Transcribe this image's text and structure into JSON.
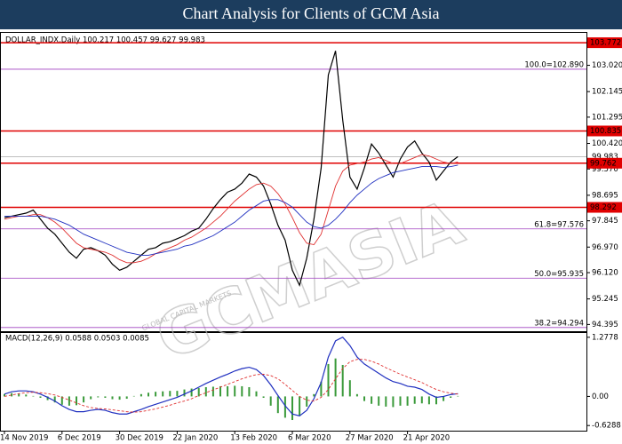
{
  "header": {
    "title": "Chart Analysis for Clients of GCM Asia"
  },
  "watermark": {
    "text": "GCMASIA",
    "subtext": "GLOBAL CAPITAL MARKETS"
  },
  "chart_data": [
    {
      "type": "line",
      "title": "DOLLAR_INDX.Daily  100.217 100.457 99.627 99.983",
      "categories": [
        "14 Nov 2019",
        null,
        null,
        null,
        null,
        null,
        null,
        null,
        "6 Dec 2019",
        null,
        null,
        null,
        null,
        null,
        null,
        null,
        "30 Dec 2019",
        null,
        null,
        null,
        null,
        null,
        null,
        null,
        "22 Jan 2020",
        null,
        null,
        null,
        null,
        null,
        null,
        null,
        "13 Feb 2020",
        null,
        null,
        null,
        null,
        null,
        null,
        null,
        "6 Mar 2020",
        null,
        null,
        null,
        null,
        null,
        null,
        null,
        "27 Mar 2020",
        null,
        null,
        null,
        null,
        null,
        null,
        null,
        "21 Apr 2020",
        null,
        null,
        null,
        null,
        null,
        null,
        null
      ],
      "series": [
        {
          "color": "#000000",
          "values": [
            97.95,
            98.0,
            98.05,
            98.1,
            98.2,
            97.9,
            97.6,
            97.4,
            97.1,
            96.8,
            96.6,
            96.9,
            96.95,
            96.85,
            96.7,
            96.4,
            96.2,
            96.3,
            96.5,
            96.7,
            96.9,
            96.95,
            97.1,
            97.15,
            97.25,
            97.35,
            97.5,
            97.6,
            97.9,
            98.25,
            98.55,
            98.8,
            98.9,
            99.1,
            99.4,
            99.3,
            99.0,
            98.4,
            97.7,
            97.2,
            96.2,
            95.7,
            96.6,
            97.9,
            99.6,
            102.7,
            103.5,
            101.2,
            99.3,
            98.9,
            99.6,
            100.4,
            100.1,
            99.7,
            99.3,
            99.9,
            100.3,
            100.5,
            100.1,
            99.8,
            99.2,
            99.5,
            99.8,
            99.98
          ]
        },
        {
          "color": "#e03030",
          "values": [
            97.9,
            97.95,
            98.0,
            98.0,
            98.05,
            98.05,
            97.95,
            97.8,
            97.6,
            97.35,
            97.1,
            96.95,
            96.9,
            96.85,
            96.8,
            96.7,
            96.55,
            96.45,
            96.45,
            96.5,
            96.6,
            96.75,
            96.85,
            96.95,
            97.05,
            97.2,
            97.3,
            97.45,
            97.6,
            97.8,
            98.0,
            98.25,
            98.5,
            98.7,
            98.9,
            99.05,
            99.1,
            99.0,
            98.75,
            98.4,
            97.95,
            97.45,
            97.1,
            97.05,
            97.4,
            98.2,
            99.0,
            99.5,
            99.7,
            99.75,
            99.8,
            99.9,
            99.95,
            99.85,
            99.75,
            99.75,
            99.85,
            99.95,
            100.05,
            100.0,
            99.9,
            99.8,
            99.75,
            99.8
          ]
        },
        {
          "color": "#2030c0",
          "values": [
            98.0,
            98.0,
            98.0,
            98.0,
            98.0,
            98.0,
            97.95,
            97.9,
            97.8,
            97.7,
            97.55,
            97.4,
            97.3,
            97.2,
            97.1,
            97.0,
            96.9,
            96.8,
            96.75,
            96.7,
            96.7,
            96.75,
            96.8,
            96.85,
            96.9,
            97.0,
            97.05,
            97.15,
            97.25,
            97.35,
            97.5,
            97.65,
            97.8,
            98.0,
            98.2,
            98.35,
            98.5,
            98.55,
            98.55,
            98.45,
            98.3,
            98.05,
            97.8,
            97.65,
            97.6,
            97.7,
            97.9,
            98.15,
            98.45,
            98.7,
            98.9,
            99.1,
            99.25,
            99.35,
            99.45,
            99.5,
            99.55,
            99.6,
            99.65,
            99.65,
            99.65,
            99.62,
            99.65,
            99.7
          ]
        }
      ],
      "ylim": [
        94.17,
        104.1
      ],
      "yticks": [
        {
          "value": 103.02,
          "label": "103.020"
        },
        102.145,
        101.295,
        {
          "value": 100.42,
          "label": "100.420"
        },
        {
          "value": 99.57,
          "label": "99.570"
        },
        98.695,
        97.845,
        {
          "value": 96.97,
          "label": "96.970"
        },
        {
          "value": 96.12,
          "label": "96.120"
        },
        95.245,
        94.395
      ],
      "levels": [
        103.772,
        100.835,
        99.762,
        98.292
      ],
      "level_color": "#e00000",
      "fib_levels": [
        {
          "value": 102.89,
          "label": "100.0=102.890"
        },
        {
          "value": 97.576,
          "label": "61.8=97.576"
        },
        {
          "value": 95.935,
          "label": "50.0=95.935"
        },
        {
          "value": 94.294,
          "label": "38.2=94.294"
        }
      ],
      "fib_color": "#a040c0",
      "last_price": 99.983
    },
    {
      "type": "macd",
      "title": "MACD(12,26,9) 0.0588 0.0503 0.0085",
      "histogram": {
        "color": "#3a9a3a",
        "values": [
          0.05,
          0.07,
          0.06,
          0.04,
          0.01,
          -0.03,
          -0.08,
          -0.13,
          -0.18,
          -0.2,
          -0.19,
          -0.13,
          -0.06,
          -0.02,
          -0.03,
          -0.06,
          -0.07,
          -0.05,
          0.01,
          0.05,
          0.08,
          0.1,
          0.11,
          0.12,
          0.12,
          0.15,
          0.17,
          0.18,
          0.2,
          0.21,
          0.22,
          0.22,
          0.23,
          0.22,
          0.2,
          0.11,
          -0.03,
          -0.2,
          -0.36,
          -0.46,
          -0.51,
          -0.42,
          -0.22,
          0.05,
          0.32,
          0.7,
          0.82,
          0.68,
          0.35,
          0.05,
          -0.1,
          -0.16,
          -0.2,
          -0.22,
          -0.23,
          -0.2,
          -0.2,
          -0.16,
          -0.15,
          -0.17,
          -0.17,
          -0.1,
          -0.03,
          0.01
        ]
      },
      "series": [
        {
          "color": "#2030c0",
          "values": [
            0.05,
            0.1,
            0.12,
            0.12,
            0.1,
            0.05,
            -0.02,
            -0.1,
            -0.2,
            -0.28,
            -0.33,
            -0.33,
            -0.3,
            -0.28,
            -0.3,
            -0.35,
            -0.38,
            -0.38,
            -0.33,
            -0.28,
            -0.22,
            -0.17,
            -0.12,
            -0.07,
            -0.02,
            0.05,
            0.12,
            0.2,
            0.28,
            0.35,
            0.42,
            0.48,
            0.55,
            0.6,
            0.63,
            0.58,
            0.45,
            0.25,
            0.02,
            -0.2,
            -0.38,
            -0.42,
            -0.3,
            -0.05,
            0.3,
            0.85,
            1.2,
            1.28,
            1.1,
            0.85,
            0.7,
            0.6,
            0.5,
            0.4,
            0.32,
            0.28,
            0.22,
            0.2,
            0.15,
            0.05,
            -0.02,
            0.0,
            0.04,
            0.06
          ]
        },
        {
          "color": "#e03030",
          "dashed": true,
          "values": [
            0.0,
            0.03,
            0.06,
            0.08,
            0.09,
            0.08,
            0.06,
            0.03,
            -0.02,
            -0.08,
            -0.14,
            -0.2,
            -0.24,
            -0.26,
            -0.27,
            -0.29,
            -0.31,
            -0.33,
            -0.34,
            -0.33,
            -0.3,
            -0.27,
            -0.23,
            -0.19,
            -0.14,
            -0.1,
            -0.05,
            0.02,
            0.08,
            0.14,
            0.2,
            0.26,
            0.32,
            0.38,
            0.43,
            0.47,
            0.48,
            0.45,
            0.38,
            0.26,
            0.13,
            0.0,
            -0.08,
            -0.1,
            -0.02,
            0.15,
            0.38,
            0.6,
            0.75,
            0.8,
            0.8,
            0.76,
            0.7,
            0.62,
            0.55,
            0.48,
            0.42,
            0.36,
            0.3,
            0.22,
            0.15,
            0.1,
            0.07,
            0.05
          ]
        }
      ],
      "ylim": [
        -0.74,
        1.37
      ],
      "yticks": [
        1.2778,
        {
          "value": 0,
          "label": "0.00"
        },
        -0.6288
      ]
    }
  ]
}
